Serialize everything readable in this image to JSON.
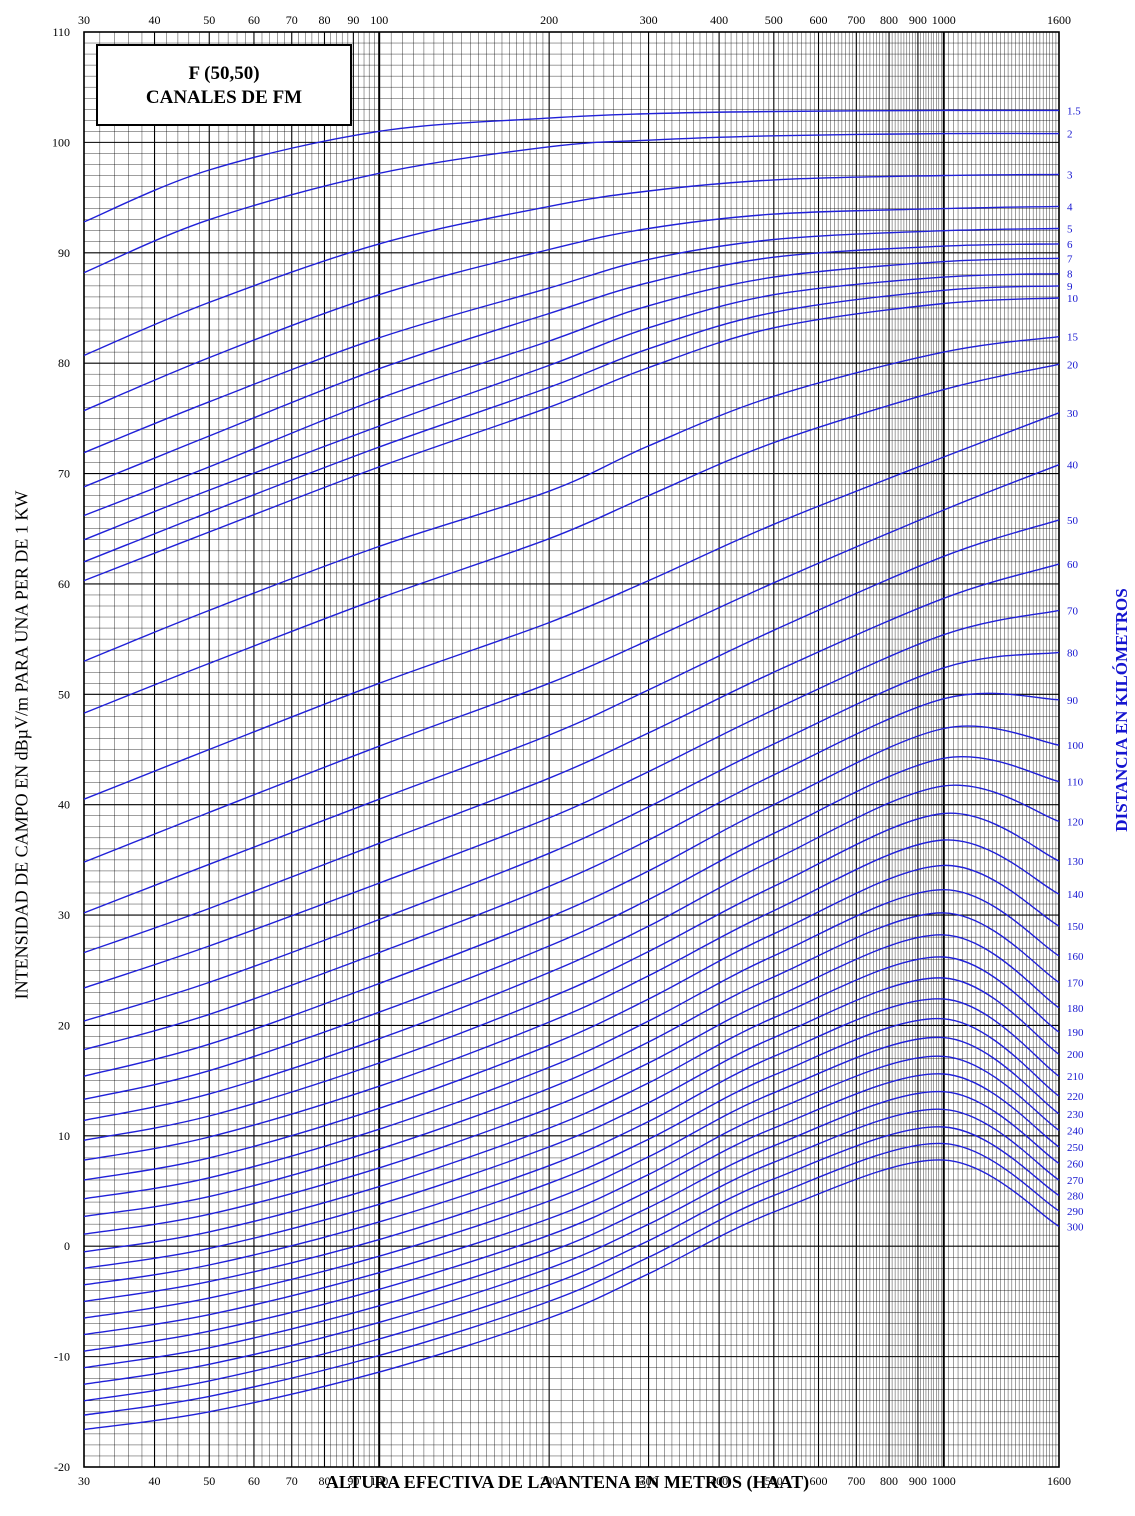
{
  "chart_data": {
    "type": "line",
    "title_lines": [
      "F (50,50)",
      "CANALES DE FM"
    ],
    "xlabel": "ALTURA EFECTIVA DE LA ANTENA EN METROS (HAAT)",
    "ylabel": "INTENSIDAD DE CAMPO EN dBµV/m PARA UNA PER DE 1 KW",
    "right_label": "DISTANCIA EN KILÓMETROS",
    "x_scale": "log",
    "xlim": [
      30,
      1600
    ],
    "ylim": [
      -20,
      110
    ],
    "grid": true,
    "x_tick_labels": [
      "30",
      "40",
      "50",
      "60",
      "70",
      "80",
      "90",
      "100",
      "200",
      "300",
      "400",
      "500",
      "600",
      "700",
      "800",
      "900",
      "1000",
      "1600"
    ],
    "y_tick_labels": [
      "110",
      "100",
      "90",
      "80",
      "70",
      "60",
      "50",
      "40",
      "30",
      "20",
      "10",
      "0",
      "-10",
      "-20"
    ],
    "x_points": [
      30,
      50,
      100,
      200,
      300,
      500,
      1000,
      1600
    ],
    "series": [
      {
        "label": "1.5",
        "values": [
          92.8,
          97.5,
          101.0,
          102.2,
          102.6,
          102.8,
          102.9,
          102.9
        ]
      },
      {
        "label": "2",
        "values": [
          88.2,
          93.0,
          97.2,
          99.6,
          100.2,
          100.6,
          100.8,
          100.8
        ]
      },
      {
        "label": "3",
        "values": [
          80.7,
          85.5,
          90.8,
          94.2,
          95.6,
          96.6,
          97.0,
          97.1
        ]
      },
      {
        "label": "4",
        "values": [
          75.7,
          80.5,
          86.2,
          90.3,
          92.2,
          93.5,
          94.0,
          94.2
        ]
      },
      {
        "label": "5",
        "values": [
          71.9,
          76.5,
          82.3,
          86.8,
          89.4,
          91.2,
          92.0,
          92.2
        ]
      },
      {
        "label": "6",
        "values": [
          68.8,
          73.4,
          79.5,
          84.5,
          87.3,
          89.6,
          90.6,
          90.8
        ]
      },
      {
        "label": "7",
        "values": [
          66.2,
          70.6,
          76.8,
          82.0,
          85.2,
          87.8,
          89.2,
          89.5
        ]
      },
      {
        "label": "8",
        "values": [
          64.0,
          68.5,
          74.3,
          79.8,
          83.2,
          86.2,
          87.8,
          88.1
        ]
      },
      {
        "label": "9",
        "values": [
          62.0,
          66.5,
          72.4,
          77.8,
          81.3,
          84.6,
          86.6,
          87.0
        ]
      },
      {
        "label": "10",
        "values": [
          60.3,
          64.7,
          70.6,
          76.0,
          79.6,
          83.2,
          85.4,
          85.9
        ]
      },
      {
        "label": "15",
        "values": [
          53.0,
          57.6,
          63.4,
          68.4,
          72.5,
          77.0,
          81.0,
          82.4
        ]
      },
      {
        "label": "20",
        "values": [
          48.3,
          52.8,
          58.7,
          64.1,
          68.0,
          72.8,
          77.6,
          79.9
        ]
      },
      {
        "label": "30",
        "values": [
          40.5,
          45.0,
          51.0,
          56.5,
          60.3,
          65.4,
          71.5,
          75.5
        ]
      },
      {
        "label": "40",
        "values": [
          34.8,
          39.3,
          45.3,
          51.0,
          54.9,
          60.1,
          66.7,
          70.8
        ]
      },
      {
        "label": "50",
        "values": [
          30.2,
          34.6,
          40.5,
          46.3,
          50.4,
          55.8,
          62.5,
          65.8
        ]
      },
      {
        "label": "60",
        "values": [
          26.6,
          30.6,
          36.5,
          42.4,
          46.5,
          52.0,
          58.7,
          61.8
        ]
      },
      {
        "label": "70",
        "values": [
          23.4,
          27.2,
          32.9,
          38.8,
          43.0,
          48.6,
          55.4,
          57.6
        ]
      },
      {
        "label": "80",
        "values": [
          20.4,
          23.9,
          29.6,
          35.6,
          39.8,
          45.5,
          52.4,
          53.8
        ]
      },
      {
        "label": "90",
        "values": [
          17.8,
          21.0,
          26.6,
          32.6,
          36.8,
          42.7,
          49.6,
          49.5
        ]
      },
      {
        "label": "100",
        "values": [
          15.4,
          18.3,
          23.8,
          29.8,
          34.0,
          40.0,
          46.9,
          45.4
        ]
      },
      {
        "label": "110",
        "values": [
          13.3,
          15.9,
          21.2,
          27.2,
          31.4,
          37.4,
          44.2,
          42.1
        ]
      },
      {
        "label": "120",
        "values": [
          11.4,
          13.8,
          18.8,
          24.8,
          29.0,
          35.0,
          41.7,
          38.5
        ]
      },
      {
        "label": "130",
        "values": [
          9.6,
          11.8,
          16.6,
          22.5,
          26.7,
          32.6,
          39.2,
          34.9
        ]
      },
      {
        "label": "140",
        "values": [
          7.8,
          9.9,
          14.5,
          20.3,
          24.5,
          30.4,
          36.8,
          31.9
        ]
      },
      {
        "label": "150",
        "values": [
          6.0,
          8.0,
          12.5,
          18.2,
          22.4,
          28.3,
          34.5,
          29.0
        ]
      },
      {
        "label": "160",
        "values": [
          4.3,
          6.2,
          10.6,
          16.2,
          20.4,
          26.3,
          32.3,
          26.3
        ]
      },
      {
        "label": "170",
        "values": [
          2.7,
          4.5,
          8.8,
          14.3,
          18.5,
          24.4,
          30.2,
          23.9
        ]
      },
      {
        "label": "180",
        "values": [
          1.1,
          2.9,
          7.1,
          12.5,
          16.6,
          22.5,
          28.2,
          21.6
        ]
      },
      {
        "label": "190",
        "values": [
          -0.5,
          1.3,
          5.4,
          10.7,
          14.8,
          20.7,
          26.2,
          19.4
        ]
      },
      {
        "label": "200",
        "values": [
          -2.0,
          -0.2,
          3.8,
          9.0,
          13.0,
          18.9,
          24.3,
          17.4
        ]
      },
      {
        "label": "210",
        "values": [
          -3.5,
          -1.7,
          2.2,
          7.3,
          11.3,
          17.2,
          22.4,
          15.4
        ]
      },
      {
        "label": "220",
        "values": [
          -5.0,
          -3.2,
          0.6,
          5.7,
          9.7,
          15.5,
          20.6,
          13.6
        ]
      },
      {
        "label": "230",
        "values": [
          -6.5,
          -4.7,
          -0.9,
          4.1,
          8.1,
          13.9,
          18.9,
          12.0
        ]
      },
      {
        "label": "240",
        "values": [
          -8.0,
          -6.2,
          -2.4,
          2.5,
          6.5,
          12.3,
          17.2,
          10.5
        ]
      },
      {
        "label": "250",
        "values": [
          -9.5,
          -7.7,
          -3.9,
          1.0,
          5.0,
          10.7,
          15.6,
          9.0
        ]
      },
      {
        "label": "260",
        "values": [
          -11.0,
          -9.2,
          -5.4,
          -0.5,
          3.5,
          9.1,
          14.0,
          7.5
        ]
      },
      {
        "label": "270",
        "values": [
          -12.5,
          -10.7,
          -6.9,
          -2.0,
          2.0,
          7.6,
          12.4,
          6.0
        ]
      },
      {
        "label": "280",
        "values": [
          -14.0,
          -12.2,
          -8.4,
          -3.5,
          0.5,
          6.1,
          10.8,
          4.6
        ]
      },
      {
        "label": "290",
        "values": [
          -15.3,
          -13.6,
          -9.9,
          -5.0,
          -1.0,
          4.6,
          9.3,
          3.2
        ]
      },
      {
        "label": "300",
        "values": [
          -16.6,
          -15.0,
          -11.4,
          -6.5,
          -2.5,
          3.1,
          7.8,
          1.8
        ]
      }
    ]
  }
}
